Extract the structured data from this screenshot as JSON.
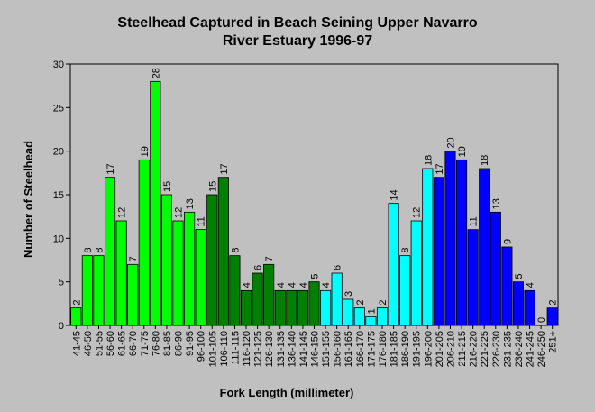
{
  "chart_data": {
    "type": "bar",
    "title_line1": "Steelhead Captured in Beach Seining Upper Navarro",
    "title_line2": "River Estuary 1996-97",
    "xlabel": "Fork Length (millimeter)",
    "ylabel": "Number of Steelhead",
    "ylim": [
      0,
      30
    ],
    "yticks": [
      0,
      5,
      10,
      15,
      20,
      25,
      30
    ],
    "grid": false,
    "legend": "none",
    "categories": [
      "41-45",
      "46-50",
      "51-55",
      "56-60",
      "61-65",
      "66-70",
      "71-75",
      "76-80",
      "81-85",
      "86-90",
      "91-95",
      "96-100",
      "101-105",
      "106-110",
      "111-115",
      "116-120",
      "121-125",
      "126-130",
      "131-135",
      "136-140",
      "141-145",
      "146-150",
      "151-155",
      "156-160",
      "161-165",
      "166-170",
      "171-175",
      "176-180",
      "181-185",
      "186-190",
      "191-195",
      "196-200",
      "201-205",
      "206-210",
      "211-215",
      "216-220",
      "221-225",
      "226-230",
      "231-235",
      "236-240",
      "241-245",
      "246-250",
      "251+"
    ],
    "values": [
      2,
      8,
      8,
      17,
      12,
      7,
      19,
      28,
      15,
      12,
      13,
      11,
      15,
      17,
      8,
      4,
      6,
      7,
      4,
      4,
      4,
      5,
      4,
      6,
      3,
      2,
      1,
      2,
      14,
      8,
      12,
      18,
      17,
      20,
      19,
      11,
      18,
      13,
      9,
      5,
      4,
      0,
      2
    ],
    "groups": [
      {
        "from": 0,
        "to": 11,
        "color": "#00ff00"
      },
      {
        "from": 12,
        "to": 21,
        "color": "#008000"
      },
      {
        "from": 22,
        "to": 31,
        "color": "#00ffff"
      },
      {
        "from": 32,
        "to": 42,
        "color": "#0000ff"
      }
    ]
  }
}
